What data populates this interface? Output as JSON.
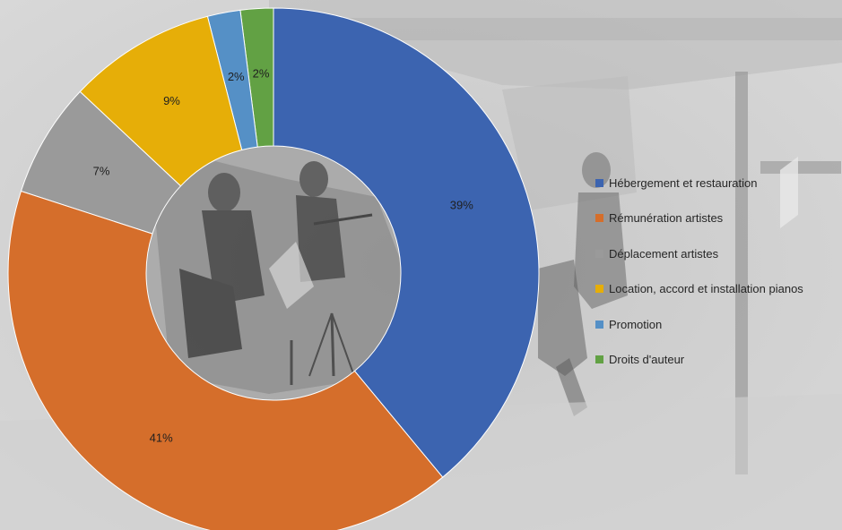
{
  "chart_data": {
    "type": "pie",
    "variant": "donut",
    "title": "",
    "legend_position": "right",
    "categories": [
      "Hébergement et restauration",
      "Rémunération artistes",
      "Déplacement artistes",
      "Location, accord et installation pianos",
      "Promotion",
      "Droits d'auteur"
    ],
    "values": [
      39,
      41,
      7,
      9,
      2,
      2
    ],
    "labels": [
      "39%",
      "41%",
      "7%",
      "9%",
      "2%",
      "2%"
    ],
    "colors": [
      "#3c64b0",
      "#d56e2b",
      "#9a9a9a",
      "#e6ae08",
      "#5590c6",
      "#62a144"
    ]
  }
}
